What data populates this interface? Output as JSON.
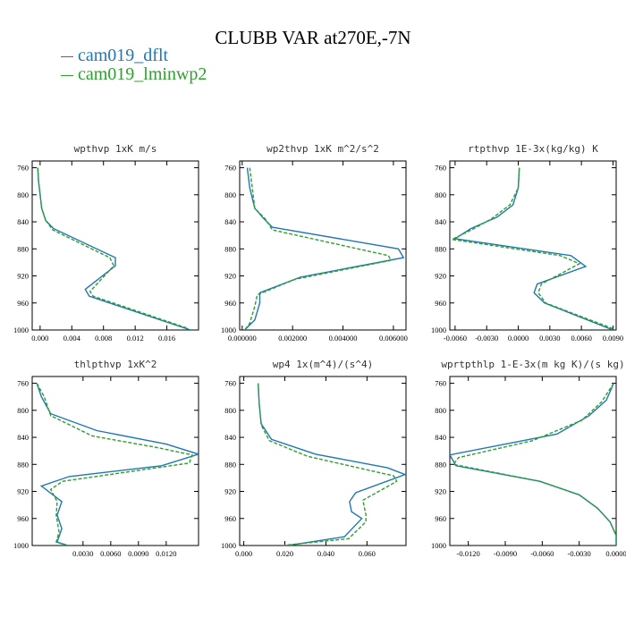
{
  "title": "CLUBB VAR at270E,-7N",
  "legend": {
    "entries": [
      {
        "label": "cam019_dflt",
        "color": "#1f77b4"
      },
      {
        "label": "cam019_lminwp2",
        "color": "#2ca02c"
      }
    ]
  },
  "chart_data": [
    {
      "type": "line",
      "title": "wpthvp  1xK m/s",
      "ylim": [
        1000,
        750
      ],
      "yticks": [
        1000,
        960,
        920,
        880,
        840,
        800,
        760
      ],
      "xlim": [
        -0.001,
        0.02
      ],
      "xticks": [
        0.0,
        0.004,
        0.008,
        0.012,
        0.016
      ],
      "xticklabels": [
        "0.000",
        "0.004",
        "0.008",
        "0.012",
        "0.016"
      ],
      "series": [
        {
          "name": "cam019_dflt",
          "color": "#1f77b4",
          "dash": "solid",
          "points": [
            [
              -0.0003,
              760
            ],
            [
              -0.0002,
              780
            ],
            [
              0.0,
              800
            ],
            [
              0.0002,
              820
            ],
            [
              0.0007,
              838
            ],
            [
              0.0017,
              850
            ],
            [
              0.0095,
              893
            ],
            [
              0.0095,
              905
            ],
            [
              0.0057,
              940
            ],
            [
              0.0062,
              950
            ],
            [
              0.019,
              1000
            ]
          ]
        },
        {
          "name": "cam019_lminwp2",
          "color": "#2ca02c",
          "dash": "dashed",
          "points": [
            [
              -0.0003,
              760
            ],
            [
              -0.0002,
              780
            ],
            [
              0.0,
              800
            ],
            [
              0.0002,
              820
            ],
            [
              0.0007,
              838
            ],
            [
              0.0016,
              852
            ],
            [
              0.0088,
              893
            ],
            [
              0.0093,
              905
            ],
            [
              0.0063,
              943
            ],
            [
              0.0067,
              950
            ],
            [
              0.0185,
              997
            ]
          ]
        }
      ]
    },
    {
      "type": "line",
      "title": "wp2thvp  1xK m^2/s^2",
      "ylim": [
        1000,
        750
      ],
      "yticks": [
        1000,
        960,
        920,
        880,
        840,
        800,
        760
      ],
      "xlim": [
        -0.0001,
        0.0065
      ],
      "xticks": [
        0.0,
        0.002,
        0.004,
        0.006
      ],
      "xticklabels": [
        "0.000000",
        "0.002000",
        "0.004000",
        "0.006000"
      ],
      "series": [
        {
          "name": "cam019_dflt",
          "color": "#1f77b4",
          "dash": "solid",
          "points": [
            [
              0.0002,
              760
            ],
            [
              0.0003,
              790
            ],
            [
              0.0005,
              820
            ],
            [
              0.00085,
              835
            ],
            [
              0.0012,
              848
            ],
            [
              0.0062,
              880
            ],
            [
              0.0064,
              893
            ],
            [
              0.0023,
              922
            ],
            [
              0.0007,
              945
            ],
            [
              0.0007,
              960
            ],
            [
              0.0005,
              985
            ],
            [
              0.0001,
              1000
            ]
          ]
        },
        {
          "name": "cam019_lminwp2",
          "color": "#2ca02c",
          "dash": "dashed",
          "points": [
            [
              0.0003,
              760
            ],
            [
              0.0004,
              790
            ],
            [
              0.0005,
              820
            ],
            [
              0.0009,
              835
            ],
            [
              0.0012,
              852
            ],
            [
              0.0058,
              890
            ],
            [
              0.0059,
              897
            ],
            [
              0.0021,
              925
            ],
            [
              0.0006,
              948
            ],
            [
              0.0005,
              965
            ],
            [
              0.0003,
              990
            ],
            [
              0.0001,
              1000
            ]
          ]
        }
      ]
    },
    {
      "type": "line",
      "title": "rtpthvp  1E-3x(kg/kg) K",
      "ylim": [
        1000,
        750
      ],
      "yticks": [
        1000,
        960,
        920,
        880,
        840,
        800,
        760
      ],
      "xlim": [
        -0.0065,
        0.0093
      ],
      "xticks": [
        -0.006,
        -0.003,
        0.0,
        0.003,
        0.006,
        0.009
      ],
      "xticklabels": [
        "-0.0060",
        "-0.0030",
        "0.0000",
        "0.0030",
        "0.0060",
        "0.0090"
      ],
      "series": [
        {
          "name": "cam019_dflt",
          "color": "#1f77b4",
          "dash": "solid",
          "points": [
            [
              0.0001,
              760
            ],
            [
              0.0,
              790
            ],
            [
              -0.0005,
              815
            ],
            [
              -0.002,
              833
            ],
            [
              -0.0045,
              850
            ],
            [
              -0.006,
              865
            ],
            [
              0.005,
              890
            ],
            [
              0.0064,
              906
            ],
            [
              0.0018,
              932
            ],
            [
              0.0015,
              945
            ],
            [
              0.0025,
              960
            ],
            [
              0.009,
              1000
            ]
          ]
        },
        {
          "name": "cam019_lminwp2",
          "color": "#2ca02c",
          "dash": "dashed",
          "points": [
            [
              0.0001,
              760
            ],
            [
              0.0,
              790
            ],
            [
              -0.0008,
              815
            ],
            [
              -0.0025,
              835
            ],
            [
              -0.0042,
              850
            ],
            [
              -0.0063,
              866
            ],
            [
              0.004,
              890
            ],
            [
              0.0058,
              902
            ],
            [
              0.0022,
              932
            ],
            [
              0.0019,
              945
            ],
            [
              0.0026,
              960
            ],
            [
              0.009,
              998
            ]
          ]
        }
      ]
    },
    {
      "type": "line",
      "title": "thlpthvp  1xK^2",
      "ylim": [
        1000,
        750
      ],
      "yticks": [
        1000,
        960,
        920,
        880,
        840,
        800,
        760
      ],
      "xlim": [
        -0.0025,
        0.0155
      ],
      "xticks": [
        0.003,
        0.006,
        0.009,
        0.012
      ],
      "xticklabels": [
        "0.0030",
        "0.0060",
        "0.0090",
        "0.0120"
      ],
      "series": [
        {
          "name": "cam019_dflt",
          "color": "#1f77b4",
          "dash": "solid",
          "points": [
            [
              -0.002,
              760
            ],
            [
              -0.0015,
              780
            ],
            [
              -0.0005,
              805
            ],
            [
              0.0045,
              830
            ],
            [
              0.012,
              850
            ],
            [
              0.0155,
              865
            ],
            [
              0.0115,
              882
            ],
            [
              0.0015,
              898
            ],
            [
              -0.0015,
              912
            ],
            [
              0.0007,
              935
            ],
            [
              0.0002,
              955
            ],
            [
              0.0007,
              975
            ],
            [
              0.0002,
              995
            ],
            [
              0.0014,
              1000
            ]
          ]
        },
        {
          "name": "cam019_lminwp2",
          "color": "#2ca02c",
          "dash": "dashed",
          "points": [
            [
              -0.002,
              760
            ],
            [
              -0.0012,
              780
            ],
            [
              -0.0005,
              808
            ],
            [
              0.004,
              838
            ],
            [
              0.011,
              855
            ],
            [
              0.0148,
              866
            ],
            [
              0.0145,
              878
            ],
            [
              0.0008,
              905
            ],
            [
              -0.0005,
              917
            ],
            [
              0.0002,
              935
            ],
            [
              0.0001,
              955
            ],
            [
              0.0004,
              980
            ],
            [
              0.0001,
              995
            ],
            [
              0.0013,
              1000
            ]
          ]
        }
      ]
    },
    {
      "type": "line",
      "title": "wp4  1x(m^4)/(s^4)",
      "ylim": [
        1000,
        750
      ],
      "yticks": [
        1000,
        960,
        920,
        880,
        840,
        800,
        760
      ],
      "xlim": [
        -0.002,
        0.079
      ],
      "xticks": [
        0.0,
        0.02,
        0.04,
        0.06
      ],
      "xticklabels": [
        "0.000",
        "0.020",
        "0.040",
        "0.060"
      ],
      "series": [
        {
          "name": "cam019_dflt",
          "color": "#1f77b4",
          "dash": "solid",
          "points": [
            [
              0.007,
              760
            ],
            [
              0.0075,
              790
            ],
            [
              0.0085,
              820
            ],
            [
              0.0135,
              843
            ],
            [
              0.035,
              865
            ],
            [
              0.07,
              885
            ],
            [
              0.0785,
              895
            ],
            [
              0.0545,
              922
            ],
            [
              0.0515,
              935
            ],
            [
              0.0525,
              950
            ],
            [
              0.0575,
              960
            ],
            [
              0.049,
              987
            ],
            [
              0.0215,
              1000
            ]
          ]
        },
        {
          "name": "cam019_lminwp2",
          "color": "#2ca02c",
          "dash": "dashed",
          "points": [
            [
              0.007,
              760
            ],
            [
              0.0075,
              790
            ],
            [
              0.0085,
              822
            ],
            [
              0.0125,
              845
            ],
            [
              0.031,
              868
            ],
            [
              0.073,
              897
            ],
            [
              0.0745,
              905
            ],
            [
              0.058,
              933
            ],
            [
              0.0595,
              955
            ],
            [
              0.0595,
              965
            ],
            [
              0.051,
              990
            ],
            [
              0.0185,
              1000
            ]
          ]
        }
      ]
    },
    {
      "type": "line",
      "title": "wprtpthlp  1-E-3x(m kg K)/(s kg)",
      "ylim": [
        1000,
        750
      ],
      "yticks": [
        1000,
        960,
        920,
        880,
        840,
        800,
        760
      ],
      "xlim": [
        -0.0135,
        0.0
      ],
      "xticks": [
        -0.012,
        -0.009,
        -0.006,
        -0.003,
        0.0
      ],
      "xticklabels": [
        "-0.0120",
        "-0.0090",
        "-0.0060",
        "-0.0030",
        "0.0000"
      ],
      "series": [
        {
          "name": "cam019_dflt",
          "color": "#1f77b4",
          "dash": "solid",
          "points": [
            [
              -0.0002,
              760
            ],
            [
              -0.0008,
              785
            ],
            [
              -0.0022,
              808
            ],
            [
              -0.0048,
              835
            ],
            [
              -0.0135,
              866
            ],
            [
              -0.013,
              882
            ],
            [
              -0.0062,
              905
            ],
            [
              -0.003,
              925
            ],
            [
              -0.0015,
              945
            ],
            [
              -0.0005,
              965
            ],
            [
              0.0,
              985
            ],
            [
              0.0,
              1000
            ]
          ]
        },
        {
          "name": "cam019_lminwp2",
          "color": "#2ca02c",
          "dash": "dashed",
          "points": [
            [
              -0.0002,
              760
            ],
            [
              -0.0012,
              788
            ],
            [
              -0.0028,
              815
            ],
            [
              -0.0068,
              845
            ],
            [
              -0.0128,
              870
            ],
            [
              -0.0132,
              880
            ],
            [
              -0.0062,
              905
            ],
            [
              -0.003,
              925
            ],
            [
              -0.0015,
              945
            ],
            [
              -0.0005,
              965
            ],
            [
              0.0,
              985
            ],
            [
              0.0,
              1000
            ]
          ]
        }
      ]
    }
  ]
}
